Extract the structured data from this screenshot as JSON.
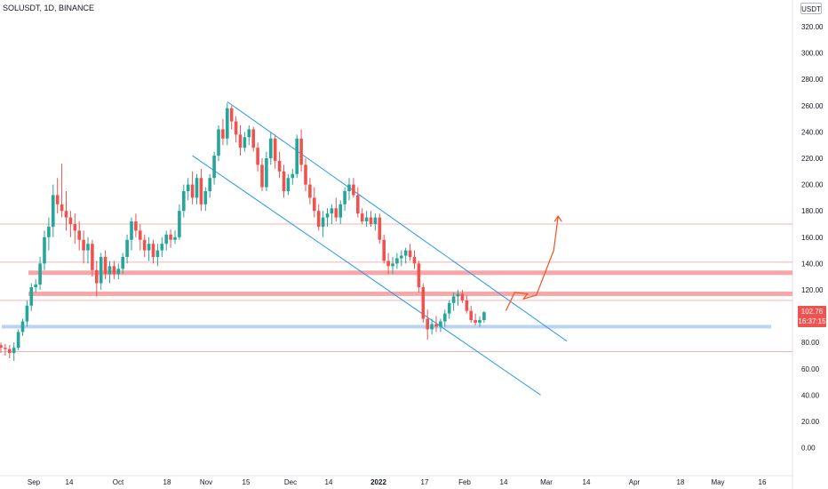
{
  "header": {
    "symbol": "SOLUSDT, 1D, BINANCE",
    "currency": "USDT"
  },
  "last_price": {
    "value": "102.76",
    "countdown": "16:37:15"
  },
  "colors": {
    "up": "#26a69a",
    "down": "#ef5350",
    "resistance": "#f48a8a",
    "support": "#b9d3f2",
    "channel": "#2196f3",
    "projection": "#f4511e",
    "thin_line": "#f6b3b3"
  },
  "chart_data": {
    "type": "candlestick",
    "ylim": [
      -20,
      330
    ],
    "y_ticks": [
      "320.00",
      "300.00",
      "280.00",
      "260.00",
      "240.00",
      "220.00",
      "200.00",
      "180.00",
      "160.00",
      "140.00",
      "120.00",
      "100.00",
      "80.00",
      "60.00",
      "40.00",
      "20.00",
      "0.00"
    ],
    "x_ticks": [
      "Sep",
      "14",
      "Oct",
      "18",
      "Nov",
      "15",
      "Dec",
      "14",
      "2022",
      "17",
      "Feb",
      "14",
      "Mar",
      "14",
      "Apr",
      "18",
      "May",
      "16"
    ],
    "candles": [
      {
        "o": 78,
        "h": 80,
        "l": 72,
        "c": 76
      },
      {
        "o": 76,
        "h": 79,
        "l": 70,
        "c": 75
      },
      {
        "o": 75,
        "h": 78,
        "l": 68,
        "c": 72
      },
      {
        "o": 72,
        "h": 80,
        "l": 66,
        "c": 76
      },
      {
        "o": 76,
        "h": 90,
        "l": 74,
        "c": 88
      },
      {
        "o": 88,
        "h": 98,
        "l": 85,
        "c": 96
      },
      {
        "o": 96,
        "h": 112,
        "l": 92,
        "c": 108
      },
      {
        "o": 108,
        "h": 125,
        "l": 104,
        "c": 122
      },
      {
        "o": 122,
        "h": 128,
        "l": 118,
        "c": 124
      },
      {
        "o": 124,
        "h": 145,
        "l": 120,
        "c": 140
      },
      {
        "o": 140,
        "h": 165,
        "l": 135,
        "c": 160
      },
      {
        "o": 160,
        "h": 175,
        "l": 150,
        "c": 168
      },
      {
        "o": 168,
        "h": 200,
        "l": 160,
        "c": 192
      },
      {
        "o": 192,
        "h": 205,
        "l": 178,
        "c": 185
      },
      {
        "o": 185,
        "h": 216,
        "l": 175,
        "c": 180
      },
      {
        "o": 180,
        "h": 195,
        "l": 165,
        "c": 175
      },
      {
        "o": 175,
        "h": 180,
        "l": 160,
        "c": 170
      },
      {
        "o": 170,
        "h": 178,
        "l": 155,
        "c": 165
      },
      {
        "o": 165,
        "h": 172,
        "l": 150,
        "c": 158
      },
      {
        "o": 158,
        "h": 165,
        "l": 140,
        "c": 150
      },
      {
        "o": 150,
        "h": 160,
        "l": 140,
        "c": 155
      },
      {
        "o": 155,
        "h": 158,
        "l": 130,
        "c": 135
      },
      {
        "o": 135,
        "h": 142,
        "l": 115,
        "c": 125
      },
      {
        "o": 125,
        "h": 148,
        "l": 120,
        "c": 145
      },
      {
        "o": 145,
        "h": 150,
        "l": 128,
        "c": 132
      },
      {
        "o": 132,
        "h": 142,
        "l": 125,
        "c": 138
      },
      {
        "o": 138,
        "h": 142,
        "l": 128,
        "c": 132
      },
      {
        "o": 132,
        "h": 140,
        "l": 128,
        "c": 136
      },
      {
        "o": 136,
        "h": 148,
        "l": 132,
        "c": 145
      },
      {
        "o": 145,
        "h": 162,
        "l": 140,
        "c": 158
      },
      {
        "o": 158,
        "h": 175,
        "l": 150,
        "c": 172
      },
      {
        "o": 172,
        "h": 178,
        "l": 160,
        "c": 165
      },
      {
        "o": 165,
        "h": 170,
        "l": 150,
        "c": 158
      },
      {
        "o": 158,
        "h": 162,
        "l": 145,
        "c": 150
      },
      {
        "o": 150,
        "h": 160,
        "l": 142,
        "c": 155
      },
      {
        "o": 155,
        "h": 158,
        "l": 140,
        "c": 145
      },
      {
        "o": 145,
        "h": 155,
        "l": 138,
        "c": 150
      },
      {
        "o": 150,
        "h": 160,
        "l": 145,
        "c": 155
      },
      {
        "o": 155,
        "h": 165,
        "l": 150,
        "c": 162
      },
      {
        "o": 162,
        "h": 166,
        "l": 152,
        "c": 158
      },
      {
        "o": 158,
        "h": 165,
        "l": 155,
        "c": 160
      },
      {
        "o": 160,
        "h": 185,
        "l": 158,
        "c": 180
      },
      {
        "o": 180,
        "h": 200,
        "l": 175,
        "c": 195
      },
      {
        "o": 195,
        "h": 205,
        "l": 188,
        "c": 200
      },
      {
        "o": 200,
        "h": 210,
        "l": 185,
        "c": 190
      },
      {
        "o": 190,
        "h": 208,
        "l": 185,
        "c": 205
      },
      {
        "o": 205,
        "h": 212,
        "l": 180,
        "c": 185
      },
      {
        "o": 185,
        "h": 198,
        "l": 180,
        "c": 195
      },
      {
        "o": 195,
        "h": 208,
        "l": 190,
        "c": 205
      },
      {
        "o": 205,
        "h": 225,
        "l": 200,
        "c": 222
      },
      {
        "o": 222,
        "h": 245,
        "l": 218,
        "c": 242
      },
      {
        "o": 242,
        "h": 250,
        "l": 230,
        "c": 235
      },
      {
        "o": 235,
        "h": 262,
        "l": 230,
        "c": 258
      },
      {
        "o": 258,
        "h": 260,
        "l": 242,
        "c": 248
      },
      {
        "o": 248,
        "h": 252,
        "l": 232,
        "c": 238
      },
      {
        "o": 238,
        "h": 245,
        "l": 222,
        "c": 228
      },
      {
        "o": 228,
        "h": 240,
        "l": 225,
        "c": 236
      },
      {
        "o": 236,
        "h": 245,
        "l": 230,
        "c": 242
      },
      {
        "o": 242,
        "h": 244,
        "l": 225,
        "c": 228
      },
      {
        "o": 228,
        "h": 232,
        "l": 210,
        "c": 215
      },
      {
        "o": 215,
        "h": 220,
        "l": 195,
        "c": 198
      },
      {
        "o": 198,
        "h": 225,
        "l": 195,
        "c": 220
      },
      {
        "o": 220,
        "h": 240,
        "l": 215,
        "c": 235
      },
      {
        "o": 235,
        "h": 238,
        "l": 212,
        "c": 218
      },
      {
        "o": 218,
        "h": 225,
        "l": 205,
        "c": 210
      },
      {
        "o": 210,
        "h": 215,
        "l": 190,
        "c": 195
      },
      {
        "o": 195,
        "h": 208,
        "l": 192,
        "c": 205
      },
      {
        "o": 205,
        "h": 212,
        "l": 200,
        "c": 208
      },
      {
        "o": 208,
        "h": 238,
        "l": 205,
        "c": 235
      },
      {
        "o": 235,
        "h": 242,
        "l": 210,
        "c": 215
      },
      {
        "o": 215,
        "h": 220,
        "l": 195,
        "c": 200
      },
      {
        "o": 200,
        "h": 205,
        "l": 185,
        "c": 190
      },
      {
        "o": 190,
        "h": 198,
        "l": 175,
        "c": 180
      },
      {
        "o": 180,
        "h": 185,
        "l": 165,
        "c": 168
      },
      {
        "o": 168,
        "h": 180,
        "l": 160,
        "c": 175
      },
      {
        "o": 175,
        "h": 182,
        "l": 168,
        "c": 178
      },
      {
        "o": 178,
        "h": 185,
        "l": 170,
        "c": 182
      },
      {
        "o": 182,
        "h": 190,
        "l": 172,
        "c": 175
      },
      {
        "o": 175,
        "h": 188,
        "l": 170,
        "c": 185
      },
      {
        "o": 185,
        "h": 198,
        "l": 180,
        "c": 195
      },
      {
        "o": 195,
        "h": 205,
        "l": 188,
        "c": 200
      },
      {
        "o": 200,
        "h": 205,
        "l": 190,
        "c": 192
      },
      {
        "o": 192,
        "h": 198,
        "l": 175,
        "c": 178
      },
      {
        "o": 178,
        "h": 182,
        "l": 170,
        "c": 172
      },
      {
        "o": 172,
        "h": 180,
        "l": 168,
        "c": 175
      },
      {
        "o": 175,
        "h": 180,
        "l": 168,
        "c": 170
      },
      {
        "o": 170,
        "h": 178,
        "l": 165,
        "c": 175
      },
      {
        "o": 175,
        "h": 178,
        "l": 155,
        "c": 158
      },
      {
        "o": 158,
        "h": 162,
        "l": 140,
        "c": 142
      },
      {
        "o": 142,
        "h": 148,
        "l": 132,
        "c": 138
      },
      {
        "o": 138,
        "h": 145,
        "l": 132,
        "c": 140
      },
      {
        "o": 140,
        "h": 148,
        "l": 136,
        "c": 144
      },
      {
        "o": 144,
        "h": 150,
        "l": 138,
        "c": 146
      },
      {
        "o": 146,
        "h": 152,
        "l": 140,
        "c": 150
      },
      {
        "o": 150,
        "h": 155,
        "l": 142,
        "c": 145
      },
      {
        "o": 145,
        "h": 150,
        "l": 136,
        "c": 140
      },
      {
        "o": 140,
        "h": 142,
        "l": 118,
        "c": 122
      },
      {
        "o": 122,
        "h": 125,
        "l": 95,
        "c": 98
      },
      {
        "o": 98,
        "h": 105,
        "l": 82,
        "c": 90
      },
      {
        "o": 90,
        "h": 98,
        "l": 86,
        "c": 94
      },
      {
        "o": 94,
        "h": 100,
        "l": 88,
        "c": 92
      },
      {
        "o": 92,
        "h": 98,
        "l": 88,
        "c": 96
      },
      {
        "o": 96,
        "h": 105,
        "l": 92,
        "c": 102
      },
      {
        "o": 102,
        "h": 112,
        "l": 98,
        "c": 110
      },
      {
        "o": 110,
        "h": 118,
        "l": 104,
        "c": 115
      },
      {
        "o": 115,
        "h": 120,
        "l": 108,
        "c": 117
      },
      {
        "o": 117,
        "h": 120,
        "l": 110,
        "c": 112
      },
      {
        "o": 112,
        "h": 116,
        "l": 102,
        "c": 104
      },
      {
        "o": 104,
        "h": 108,
        "l": 95,
        "c": 97
      },
      {
        "o": 97,
        "h": 102,
        "l": 93,
        "c": 95
      },
      {
        "o": 95,
        "h": 100,
        "l": 92,
        "c": 97
      },
      {
        "o": 97,
        "h": 104,
        "l": 95,
        "c": 103
      }
    ],
    "horizontal_levels": [
      {
        "price": 133,
        "style": "band"
      },
      {
        "price": 117,
        "style": "band"
      },
      {
        "price": 92,
        "style": "support-band"
      },
      {
        "price": 170,
        "style": "line"
      },
      {
        "price": 141,
        "style": "line"
      },
      {
        "price": 112,
        "style": "line"
      },
      {
        "price": 73,
        "style": "line"
      }
    ],
    "channel_upper": {
      "from": {
        "index": 52,
        "price": 263
      },
      "to": {
        "index": 130,
        "price": 81
      }
    },
    "channel_lower": {
      "from": {
        "index": 44,
        "price": 222
      },
      "to": {
        "index": 124,
        "price": 40
      }
    },
    "projection_path": [
      [
        116,
        104
      ],
      [
        118,
        118
      ],
      [
        121,
        117
      ],
      [
        120,
        113
      ],
      [
        123,
        116
      ],
      [
        127,
        150
      ],
      [
        128,
        176
      ]
    ],
    "grid": false
  }
}
